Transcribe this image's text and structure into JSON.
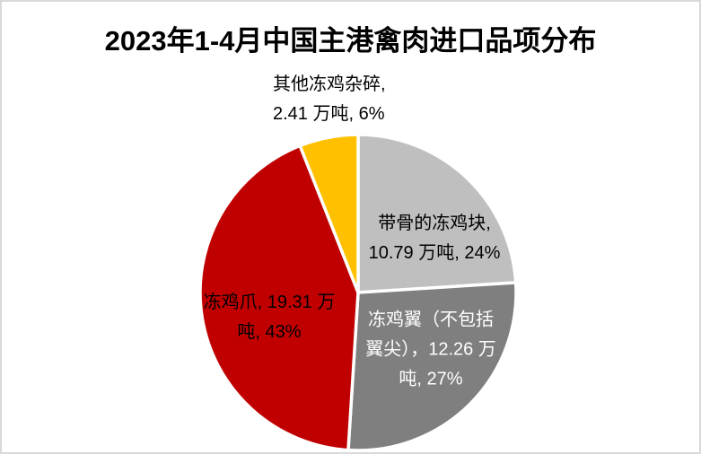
{
  "title": "2023年1-4月中国主港禽肉进口品项分布",
  "colors": {
    "background": "#FFFFFF",
    "frame_border": "#D9D9D9",
    "slice_gap": "#FFFFFF",
    "title_text": "#000000"
  },
  "chart_data": {
    "type": "pie",
    "title": "2023年1-4月中国主港禽肉进口品项分布",
    "unit": "万吨",
    "start_angle_deg": 0,
    "direction": "clockwise",
    "legend": "none",
    "categories": [
      "带骨的冻鸡块",
      "冻鸡翼（不包括翼尖）",
      "冻鸡爪",
      "其他冻鸡杂碎"
    ],
    "values": [
      10.79,
      12.26,
      19.31,
      2.41
    ],
    "percents": [
      24,
      27,
      43,
      6
    ],
    "slices": [
      {
        "name": "带骨的冻鸡块",
        "value": 10.79,
        "percent": 24,
        "color": "#BFBFBF",
        "label_text": "带骨的冻鸡块, 10.79 万吨, 24%",
        "label_lines": [
          "带骨的冻鸡块,",
          "10.79 万吨, 24%"
        ],
        "label_color": "#000000",
        "label_position": "inside"
      },
      {
        "name": "冻鸡翼（不包括翼尖）",
        "value": 12.26,
        "percent": 27,
        "color": "#7F7F7F",
        "label_text": "冻鸡翼（不包括翼尖），12.26 万吨, 27%",
        "label_lines": [
          "冻鸡翼（不包括",
          "翼尖），12.26 万",
          "吨, 27%"
        ],
        "label_color": "#FFFFFF",
        "label_position": "inside"
      },
      {
        "name": "冻鸡爪",
        "value": 19.31,
        "percent": 43,
        "color": "#C00000",
        "label_text": "冻鸡爪, 19.31 万吨, 43%",
        "label_lines": [
          "冻鸡爪, 19.31 万",
          "吨, 43%"
        ],
        "label_color": "#000000",
        "label_position": "inside"
      },
      {
        "name": "其他冻鸡杂碎",
        "value": 2.41,
        "percent": 6,
        "color": "#FFC000",
        "label_text": "其他冻鸡杂碎, 2.41 万吨, 6%",
        "label_lines": [
          "其他冻鸡杂碎,",
          "2.41 万吨, 6%"
        ],
        "label_color": "#000000",
        "label_position": "outside-top"
      }
    ]
  }
}
